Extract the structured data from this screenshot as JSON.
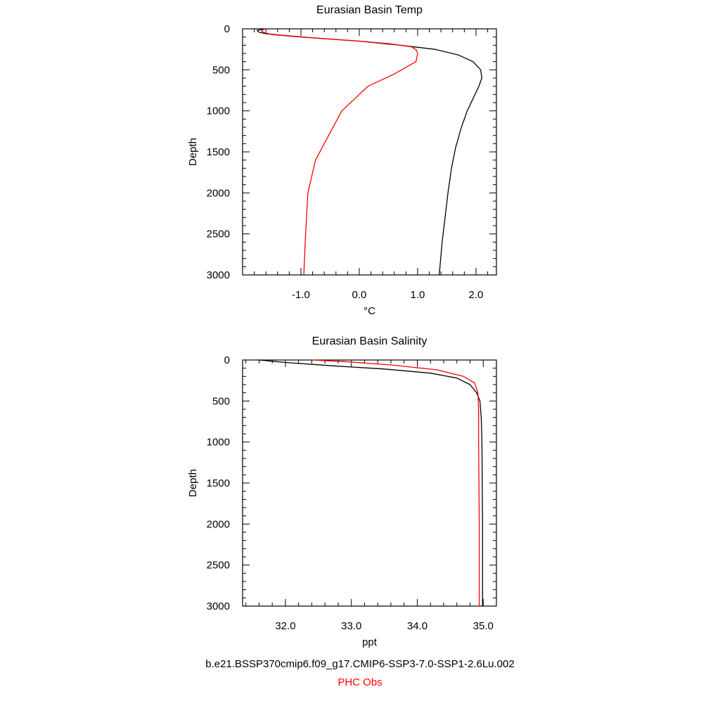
{
  "chart_data": [
    {
      "type": "line",
      "title": "Eurasian Basin Temp",
      "xlabel": "°C",
      "ylabel": "Depth",
      "xlim": [
        -2.0,
        2.35
      ],
      "ylim": [
        3000,
        0
      ],
      "xticks": [
        -1.0,
        0.0,
        1.0,
        2.0
      ],
      "xtick_labels": [
        "-1.0",
        "0.0",
        "1.0",
        "2.0"
      ],
      "yticks": [
        0,
        500,
        1000,
        1500,
        2000,
        2500,
        3000
      ],
      "ytick_labels": [
        "0",
        "500",
        "1000",
        "1500",
        "2000",
        "2500",
        "3000"
      ],
      "grid": false,
      "series": [
        {
          "color": "#000000",
          "points": [
            [
              -1.65,
              0
            ],
            [
              -1.75,
              20
            ],
            [
              -1.72,
              40
            ],
            [
              -1.6,
              60
            ],
            [
              -1.3,
              80
            ],
            [
              -0.8,
              110
            ],
            [
              0.0,
              150
            ],
            [
              0.7,
              200
            ],
            [
              1.3,
              250
            ],
            [
              1.7,
              320
            ],
            [
              1.95,
              400
            ],
            [
              2.08,
              500
            ],
            [
              2.1,
              600
            ],
            [
              2.05,
              700
            ],
            [
              1.95,
              850
            ],
            [
              1.85,
              1000
            ],
            [
              1.75,
              1200
            ],
            [
              1.65,
              1450
            ],
            [
              1.58,
              1700
            ],
            [
              1.52,
              2000
            ],
            [
              1.47,
              2300
            ],
            [
              1.42,
              2600
            ],
            [
              1.37,
              3000
            ]
          ]
        },
        {
          "color": "#ff0000",
          "points": [
            [
              -1.6,
              0
            ],
            [
              -1.68,
              20
            ],
            [
              -1.65,
              40
            ],
            [
              -1.5,
              70
            ],
            [
              -1.0,
              100
            ],
            [
              0.0,
              150
            ],
            [
              0.5,
              180
            ],
            [
              0.9,
              220
            ],
            [
              0.98,
              260
            ],
            [
              1.0,
              300
            ],
            [
              0.97,
              400
            ],
            [
              0.6,
              550
            ],
            [
              0.15,
              700
            ],
            [
              -0.3,
              1000
            ],
            [
              -0.6,
              1400
            ],
            [
              -0.75,
              1600
            ],
            [
              -0.88,
              2000
            ],
            [
              -0.92,
              2500
            ],
            [
              -0.95,
              3000
            ]
          ]
        }
      ]
    },
    {
      "type": "line",
      "title": "Eurasian Basin Salinity",
      "xlabel": "ppt",
      "ylabel": "Depth",
      "xlim": [
        31.35,
        35.2
      ],
      "ylim": [
        3000,
        0
      ],
      "xticks": [
        32.0,
        33.0,
        34.0,
        35.0
      ],
      "xtick_labels": [
        "32.0",
        "33.0",
        "34.0",
        "35.0"
      ],
      "yticks": [
        0,
        500,
        1000,
        1500,
        2000,
        2500,
        3000
      ],
      "ytick_labels": [
        "0",
        "500",
        "1000",
        "1500",
        "2000",
        "2500",
        "3000"
      ],
      "grid": false,
      "series": [
        {
          "color": "#000000",
          "points": [
            [
              31.6,
              0
            ],
            [
              32.0,
              30
            ],
            [
              32.7,
              70
            ],
            [
              33.5,
              110
            ],
            [
              34.2,
              160
            ],
            [
              34.6,
              220
            ],
            [
              34.8,
              300
            ],
            [
              34.9,
              400
            ],
            [
              34.95,
              500
            ],
            [
              34.97,
              700
            ],
            [
              34.98,
              1000
            ],
            [
              34.99,
              2000
            ],
            [
              34.99,
              3000
            ]
          ]
        },
        {
          "color": "#ff0000",
          "points": [
            [
              32.4,
              0
            ],
            [
              32.9,
              20
            ],
            [
              33.6,
              60
            ],
            [
              34.3,
              120
            ],
            [
              34.7,
              200
            ],
            [
              34.87,
              280
            ],
            [
              34.92,
              400
            ],
            [
              34.93,
              600
            ],
            [
              34.93,
              1000
            ],
            [
              34.94,
              2000
            ],
            [
              34.94,
              3000
            ]
          ]
        }
      ]
    }
  ],
  "legend": {
    "lines": [
      {
        "text": "b.e21.BSSP370cmip6.f09_g17.CMIP6-SSP3-7.0-SSP1-2.6Lu.002",
        "color": "#000000"
      },
      {
        "text": "PHC Obs",
        "color": "#ff0000"
      }
    ]
  }
}
